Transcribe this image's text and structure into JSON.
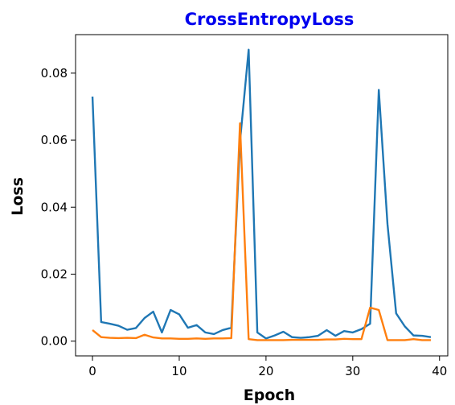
{
  "chart_data": {
    "type": "line",
    "title": "CrossEntropyLoss",
    "title_color": "#0000ee",
    "xlabel": "Epoch",
    "ylabel": "Loss",
    "xlim": [
      -1.95,
      40.95
    ],
    "ylim": [
      -0.0044,
      0.0915
    ],
    "grid": false,
    "legend": "none",
    "x_ticks": [
      0,
      10,
      20,
      30,
      40
    ],
    "x_tick_labels": [
      "0",
      "10",
      "20",
      "30",
      "40"
    ],
    "y_ticks": [
      0.0,
      0.02,
      0.04,
      0.06,
      0.08
    ],
    "y_tick_labels": [
      "0.00",
      "0.02",
      "0.04",
      "0.06",
      "0.08"
    ],
    "x": [
      0,
      1,
      2,
      3,
      4,
      5,
      6,
      7,
      8,
      9,
      10,
      11,
      12,
      13,
      14,
      15,
      16,
      17,
      18,
      19,
      20,
      21,
      22,
      23,
      24,
      25,
      26,
      27,
      28,
      29,
      30,
      31,
      32,
      33,
      34,
      35,
      36,
      37,
      38,
      39
    ],
    "series": [
      {
        "color": "#1f77b4",
        "values": [
          0.073,
          0.0057,
          0.0052,
          0.0046,
          0.0034,
          0.0039,
          0.0069,
          0.0088,
          0.0026,
          0.0093,
          0.008,
          0.004,
          0.0048,
          0.0026,
          0.0021,
          0.0033,
          0.004,
          0.0595,
          0.087,
          0.0026,
          0.0008,
          0.0017,
          0.0028,
          0.0012,
          0.001,
          0.0012,
          0.0016,
          0.0033,
          0.0016,
          0.003,
          0.0026,
          0.0036,
          0.0052,
          0.075,
          0.035,
          0.0083,
          0.0044,
          0.0017,
          0.0016,
          0.0012
        ]
      },
      {
        "color": "#ff7f0e",
        "values": [
          0.0033,
          0.0012,
          0.001,
          0.0009,
          0.001,
          0.0009,
          0.0019,
          0.0011,
          0.0008,
          0.0008,
          0.0007,
          0.0007,
          0.0008,
          0.0007,
          0.0008,
          0.0008,
          0.0009,
          0.065,
          0.0006,
          0.0003,
          0.0003,
          0.0003,
          0.0003,
          0.0004,
          0.0004,
          0.0004,
          0.0004,
          0.0005,
          0.0005,
          0.0007,
          0.0006,
          0.0006,
          0.01,
          0.0093,
          0.0003,
          0.0003,
          0.0003,
          0.0006,
          0.0003,
          0.0003
        ]
      }
    ]
  }
}
